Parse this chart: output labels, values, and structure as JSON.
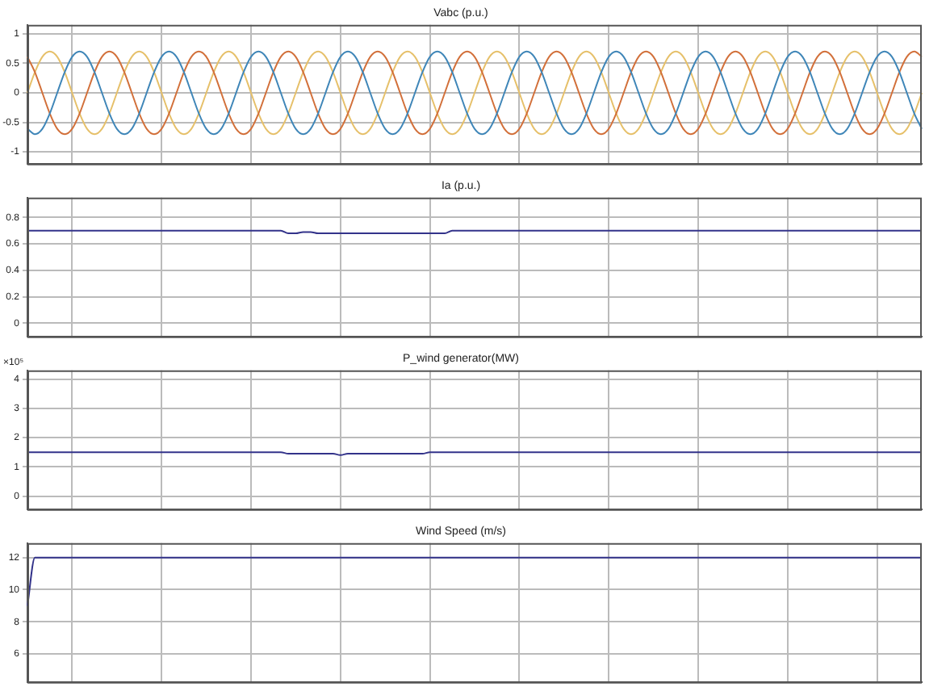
{
  "chart_data": [
    {
      "type": "line",
      "title": "Vabc (p.u.)",
      "categories": [
        null,
        null,
        null,
        null,
        null,
        null,
        null,
        null,
        null,
        null,
        null,
        null,
        null,
        null,
        null,
        null,
        null,
        null,
        null,
        null,
        null,
        null,
        null,
        null,
        null,
        null,
        null,
        null,
        null,
        null,
        null,
        null,
        null,
        null,
        null,
        null,
        null,
        null,
        null,
        null,
        null,
        null,
        null,
        null,
        null,
        null,
        null,
        null,
        null,
        null,
        null,
        null,
        null,
        null,
        null,
        null,
        null,
        null,
        null,
        null,
        null,
        null,
        null,
        null,
        null,
        null,
        null,
        null,
        null,
        null,
        null,
        null,
        null,
        null,
        null,
        null,
        null,
        null,
        null,
        null,
        null,
        null,
        null,
        null,
        null,
        null,
        null,
        null,
        null,
        null,
        null,
        null,
        null,
        null,
        null,
        null,
        null,
        null,
        null,
        null,
        null,
        null,
        null,
        null,
        null,
        null,
        null,
        null,
        null,
        null,
        null,
        null,
        null,
        null,
        null,
        null,
        null,
        null,
        null,
        null,
        null
      ],
      "series": [
        {
          "color": "#3f86b8",
          "values": [
            -0.61,
            -0.7,
            -0.61,
            -0.35,
            0,
            0.35,
            0.61,
            0.7,
            0.61,
            0.35,
            0,
            -0.35,
            -0.61,
            -0.7,
            -0.61,
            -0.35,
            0,
            0.35,
            0.61,
            0.7,
            0.61,
            0.35,
            0,
            -0.35,
            -0.61,
            -0.7,
            -0.61,
            -0.35,
            0,
            0.35,
            0.61,
            0.7,
            0.61,
            0.35,
            0,
            -0.35,
            -0.61,
            -0.7,
            -0.61,
            -0.35,
            0,
            0.35,
            0.61,
            0.7,
            0.61,
            0.35,
            0,
            -0.35,
            -0.61,
            -0.7,
            -0.61,
            -0.35,
            0,
            0.35,
            0.61,
            0.7,
            0.61,
            0.35,
            0,
            -0.35,
            -0.61,
            -0.7,
            -0.61,
            -0.35,
            0,
            0.35,
            0.61,
            0.7,
            0.61,
            0.35,
            0,
            -0.35,
            -0.61,
            -0.7,
            -0.61,
            -0.35,
            0,
            0.35,
            0.61,
            0.7,
            0.61,
            0.35,
            0,
            -0.35,
            -0.61,
            -0.7,
            -0.61,
            -0.35,
            0,
            0.35,
            0.61,
            0.7,
            0.61,
            0.35,
            0,
            -0.35,
            -0.61,
            -0.7,
            -0.61,
            -0.35,
            0,
            0.35,
            0.61,
            0.7,
            0.61,
            0.35,
            0,
            -0.35,
            -0.61,
            -0.7,
            -0.61,
            -0.35,
            0,
            0.35,
            0.61,
            0.7,
            0.61,
            0.35,
            0,
            -0.35,
            -0.61
          ]
        },
        {
          "color": "#d2703a",
          "values": [
            0.61,
            0.35,
            0,
            -0.35,
            -0.61,
            -0.7,
            -0.61,
            -0.35,
            0,
            0.35,
            0.61,
            0.7,
            0.61,
            0.35,
            0,
            -0.35,
            -0.61,
            -0.7,
            -0.61,
            -0.35,
            0,
            0.35,
            0.61,
            0.7,
            0.61,
            0.35,
            0,
            -0.35,
            -0.61,
            -0.7,
            -0.61,
            -0.35,
            0,
            0.35,
            0.61,
            0.7,
            0.61,
            0.35,
            0,
            -0.35,
            -0.61,
            -0.7,
            -0.61,
            -0.35,
            0,
            0.35,
            0.61,
            0.7,
            0.61,
            0.35,
            0,
            -0.35,
            -0.61,
            -0.7,
            -0.61,
            -0.35,
            0,
            0.35,
            0.61,
            0.7,
            0.61,
            0.35,
            0,
            -0.35,
            -0.61,
            -0.7,
            -0.61,
            -0.35,
            0,
            0.35,
            0.61,
            0.7,
            0.61,
            0.35,
            0,
            -0.35,
            -0.61,
            -0.7,
            -0.61,
            -0.35,
            0,
            0.35,
            0.61,
            0.7,
            0.61,
            0.35,
            0,
            -0.35,
            -0.61,
            -0.7,
            -0.61,
            -0.35,
            0,
            0.35,
            0.61,
            0.7,
            0.61,
            0.35,
            0,
            -0.35,
            -0.61,
            -0.7,
            -0.61,
            -0.35,
            0,
            0.35,
            0.61,
            0.7,
            0.61,
            0.35,
            0,
            -0.35,
            -0.61,
            -0.7,
            -0.61,
            -0.35,
            0,
            0.35,
            0.61,
            0.7,
            0.61
          ]
        },
        {
          "color": "#e6c06a",
          "values": [
            0,
            0.35,
            0.61,
            0.7,
            0.61,
            0.35,
            0,
            -0.35,
            -0.61,
            -0.7,
            -0.61,
            -0.35,
            0,
            0.35,
            0.61,
            0.7,
            0.61,
            0.35,
            0,
            -0.35,
            -0.61,
            -0.7,
            -0.61,
            -0.35,
            0,
            0.35,
            0.61,
            0.7,
            0.61,
            0.35,
            0,
            -0.35,
            -0.61,
            -0.7,
            -0.61,
            -0.35,
            0,
            0.35,
            0.61,
            0.7,
            0.61,
            0.35,
            0,
            -0.35,
            -0.61,
            -0.7,
            -0.61,
            -0.35,
            0,
            0.35,
            0.61,
            0.7,
            0.61,
            0.35,
            0,
            -0.35,
            -0.61,
            -0.7,
            -0.61,
            -0.35,
            0,
            0.35,
            0.61,
            0.7,
            0.61,
            0.35,
            0,
            -0.35,
            -0.61,
            -0.7,
            -0.61,
            -0.35,
            0,
            0.35,
            0.61,
            0.7,
            0.61,
            0.35,
            0,
            -0.35,
            -0.61,
            -0.7,
            -0.61,
            -0.35,
            0,
            0.35,
            0.61,
            0.7,
            0.61,
            0.35,
            0,
            -0.35,
            -0.61,
            -0.7,
            -0.61,
            -0.35,
            0,
            0.35,
            0.61,
            0.7,
            0.61,
            0.35,
            0,
            -0.35,
            -0.61,
            -0.7,
            -0.61,
            -0.35,
            0,
            0.35,
            0.61,
            0.7,
            0.61,
            0.35,
            0,
            -0.35,
            -0.61,
            -0.7,
            -0.61,
            -0.35,
            0
          ]
        }
      ],
      "ylim": [
        -1.2,
        1.15
      ],
      "yticks": [
        -1,
        -0.5,
        0,
        0.5,
        1
      ],
      "grid": true,
      "legend": false,
      "tick_labels": "y",
      "marker": "none",
      "line_style": "solid"
    },
    {
      "type": "line",
      "title": "Ia (p.u.)",
      "categories": [
        null,
        null,
        null,
        null,
        null,
        null,
        null,
        null,
        null,
        null,
        null,
        null,
        null,
        null,
        null,
        null,
        null,
        null,
        null,
        null,
        null,
        null,
        null,
        null,
        null,
        null,
        null,
        null,
        null,
        null,
        null,
        null,
        null,
        null,
        null,
        null,
        null,
        null,
        null,
        null,
        null,
        null,
        null,
        null,
        null,
        null,
        null,
        null,
        null,
        null,
        null,
        null,
        null,
        null,
        null,
        null,
        null,
        null,
        null,
        null,
        null,
        null,
        null,
        null,
        null,
        null,
        null,
        null,
        null,
        null,
        null,
        null,
        null,
        null,
        null,
        null,
        null,
        null,
        null,
        null,
        null,
        null,
        null,
        null,
        null,
        null,
        null,
        null,
        null,
        null,
        null,
        null,
        null,
        null,
        null,
        null,
        null,
        null,
        null,
        null,
        null,
        null,
        null,
        null,
        null,
        null,
        null,
        null,
        null,
        null,
        null,
        null,
        null,
        null,
        null,
        null,
        null,
        null,
        null,
        null,
        null
      ],
      "color": "#33338a",
      "values": [
        0.7,
        0.7,
        0.7,
        0.7,
        0.7,
        0.7,
        0.7,
        0.7,
        0.7,
        0.7,
        0.7,
        0.7,
        0.7,
        0.7,
        0.7,
        0.7,
        0.7,
        0.7,
        0.7,
        0.7,
        0.7,
        0.7,
        0.7,
        0.7,
        0.7,
        0.7,
        0.7,
        0.7,
        0.7,
        0.7,
        0.7,
        0.7,
        0.7,
        0.7,
        0.7,
        0.68,
        0.68,
        0.69,
        0.69,
        0.68,
        0.68,
        0.68,
        0.68,
        0.68,
        0.68,
        0.68,
        0.68,
        0.68,
        0.68,
        0.68,
        0.68,
        0.68,
        0.68,
        0.68,
        0.68,
        0.68,
        0.68,
        0.7,
        0.7,
        0.7,
        0.7,
        0.7,
        0.7,
        0.7,
        0.7,
        0.7,
        0.7,
        0.7,
        0.7,
        0.7,
        0.7,
        0.7,
        0.7,
        0.7,
        0.7,
        0.7,
        0.7,
        0.7,
        0.7,
        0.7,
        0.7,
        0.7,
        0.7,
        0.7,
        0.7,
        0.7,
        0.7,
        0.7,
        0.7,
        0.7,
        0.7,
        0.7,
        0.7,
        0.7,
        0.7,
        0.7,
        0.7,
        0.7,
        0.7,
        0.7,
        0.7,
        0.7,
        0.7,
        0.7,
        0.7,
        0.7,
        0.7,
        0.7,
        0.7,
        0.7,
        0.7,
        0.7,
        0.7,
        0.7,
        0.7,
        0.7,
        0.7,
        0.7,
        0.7,
        0.7,
        0.7
      ],
      "ylim": [
        -0.1,
        0.95
      ],
      "yticks": [
        0,
        0.2,
        0.4,
        0.6,
        0.8
      ],
      "grid": true,
      "legend": false,
      "tick_labels": "y",
      "marker": "none",
      "line_style": "solid"
    },
    {
      "type": "line",
      "title": "P_wind generator(MW)",
      "annotations": [
        "×10⁵"
      ],
      "categories": [
        null,
        null,
        null,
        null,
        null,
        null,
        null,
        null,
        null,
        null,
        null,
        null,
        null,
        null,
        null,
        null,
        null,
        null,
        null,
        null,
        null,
        null,
        null,
        null,
        null,
        null,
        null,
        null,
        null,
        null,
        null,
        null,
        null,
        null,
        null,
        null,
        null,
        null,
        null,
        null,
        null,
        null,
        null,
        null,
        null,
        null,
        null,
        null,
        null,
        null,
        null,
        null,
        null,
        null,
        null,
        null,
        null,
        null,
        null,
        null,
        null,
        null,
        null,
        null,
        null,
        null,
        null,
        null,
        null,
        null,
        null,
        null,
        null,
        null,
        null,
        null,
        null,
        null,
        null,
        null,
        null,
        null,
        null,
        null,
        null,
        null,
        null,
        null,
        null,
        null,
        null,
        null,
        null,
        null,
        null,
        null,
        null,
        null,
        null,
        null,
        null,
        null,
        null,
        null,
        null,
        null,
        null,
        null,
        null,
        null,
        null,
        null,
        null,
        null,
        null,
        null,
        null,
        null,
        null,
        null,
        null
      ],
      "color": "#33338a",
      "values": [
        1.5,
        1.5,
        1.5,
        1.5,
        1.5,
        1.5,
        1.5,
        1.5,
        1.5,
        1.5,
        1.5,
        1.5,
        1.5,
        1.5,
        1.5,
        1.5,
        1.5,
        1.5,
        1.5,
        1.5,
        1.5,
        1.5,
        1.5,
        1.5,
        1.5,
        1.5,
        1.5,
        1.5,
        1.5,
        1.5,
        1.5,
        1.5,
        1.5,
        1.5,
        1.5,
        1.45,
        1.45,
        1.45,
        1.45,
        1.45,
        1.45,
        1.45,
        1.4,
        1.45,
        1.45,
        1.45,
        1.45,
        1.45,
        1.45,
        1.45,
        1.45,
        1.45,
        1.45,
        1.45,
        1.5,
        1.5,
        1.5,
        1.5,
        1.5,
        1.5,
        1.5,
        1.5,
        1.5,
        1.5,
        1.5,
        1.5,
        1.5,
        1.5,
        1.5,
        1.5,
        1.5,
        1.5,
        1.5,
        1.5,
        1.5,
        1.5,
        1.5,
        1.5,
        1.5,
        1.5,
        1.5,
        1.5,
        1.5,
        1.5,
        1.5,
        1.5,
        1.5,
        1.5,
        1.5,
        1.5,
        1.5,
        1.5,
        1.5,
        1.5,
        1.5,
        1.5,
        1.5,
        1.5,
        1.5,
        1.5,
        1.5,
        1.5,
        1.5,
        1.5,
        1.5,
        1.5,
        1.5,
        1.5,
        1.5,
        1.5,
        1.5,
        1.5,
        1.5,
        1.5,
        1.5,
        1.5,
        1.5,
        1.5,
        1.5,
        1.5,
        1.5
      ],
      "ylim": [
        -0.45,
        4.3
      ],
      "yticks": [
        0,
        1,
        2,
        3,
        4
      ],
      "grid": true,
      "legend": false,
      "tick_labels": "y",
      "marker": "none",
      "line_style": "solid"
    },
    {
      "type": "line",
      "title": "Wind Speed (m/s)",
      "categories": [
        null,
        null,
        null,
        null,
        null,
        null,
        null,
        null,
        null,
        null,
        null,
        null,
        null,
        null,
        null,
        null,
        null,
        null,
        null,
        null,
        null,
        null,
        null,
        null,
        null,
        null,
        null,
        null,
        null,
        null,
        null,
        null,
        null,
        null,
        null,
        null,
        null,
        null,
        null,
        null,
        null,
        null,
        null,
        null,
        null,
        null,
        null,
        null,
        null,
        null,
        null,
        null,
        null,
        null,
        null,
        null,
        null,
        null,
        null,
        null,
        null,
        null,
        null,
        null,
        null,
        null,
        null,
        null,
        null,
        null,
        null,
        null,
        null,
        null,
        null,
        null,
        null,
        null,
        null,
        null,
        null,
        null,
        null,
        null,
        null,
        null,
        null,
        null,
        null,
        null,
        null,
        null,
        null,
        null,
        null,
        null,
        null,
        null,
        null,
        null,
        null,
        null,
        null,
        null,
        null,
        null,
        null,
        null,
        null,
        null,
        null,
        null,
        null,
        null,
        null,
        null,
        null,
        null,
        null,
        null,
        null
      ],
      "color": "#33338a",
      "values": [
        9,
        12,
        12,
        12,
        12,
        12,
        12,
        12,
        12,
        12,
        12,
        12,
        12,
        12,
        12,
        12,
        12,
        12,
        12,
        12,
        12,
        12,
        12,
        12,
        12,
        12,
        12,
        12,
        12,
        12,
        12,
        12,
        12,
        12,
        12,
        12,
        12,
        12,
        12,
        12,
        12,
        12,
        12,
        12,
        12,
        12,
        12,
        12,
        12,
        12,
        12,
        12,
        12,
        12,
        12,
        12,
        12,
        12,
        12,
        12,
        12,
        12,
        12,
        12,
        12,
        12,
        12,
        12,
        12,
        12,
        12,
        12,
        12,
        12,
        12,
        12,
        12,
        12,
        12,
        12,
        12,
        12,
        12,
        12,
        12,
        12,
        12,
        12,
        12,
        12,
        12,
        12,
        12,
        12,
        12,
        12,
        12,
        12,
        12,
        12,
        12,
        12,
        12,
        12,
        12,
        12,
        12,
        12,
        12,
        12,
        12,
        12,
        12,
        12,
        12,
        12,
        12,
        12,
        12,
        12,
        12
      ],
      "ylim": [
        4.25,
        12.9
      ],
      "yticks": [
        6,
        8,
        10,
        12
      ],
      "grid": true,
      "legend": false,
      "tick_labels": "y",
      "marker": "none",
      "line_style": "solid"
    }
  ]
}
